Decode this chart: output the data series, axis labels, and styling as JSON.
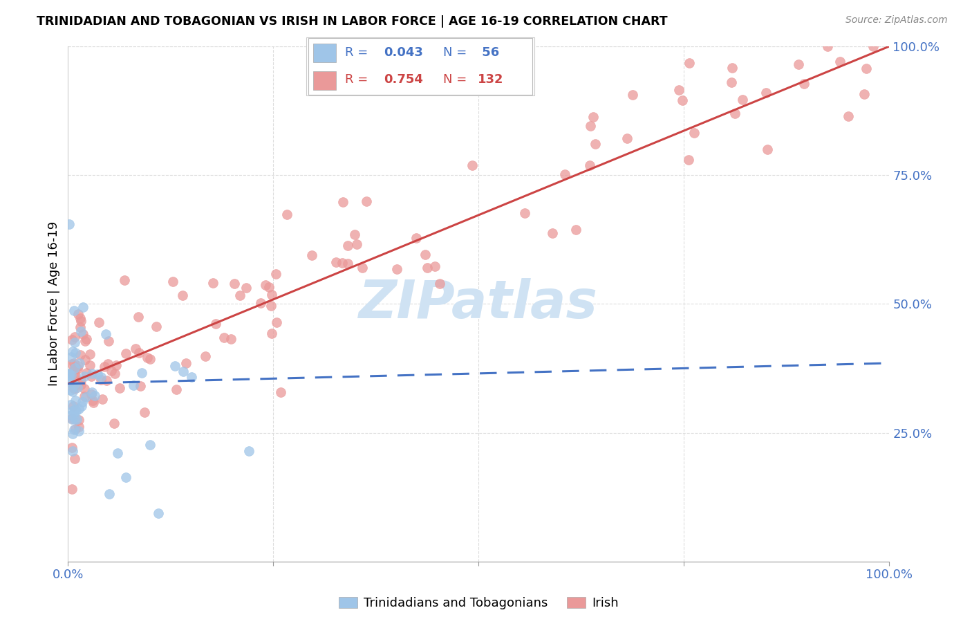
{
  "title": "TRINIDADIAN AND TOBAGONIAN VS IRISH IN LABOR FORCE | AGE 16-19 CORRELATION CHART",
  "source": "Source: ZipAtlas.com",
  "ylabel": "In Labor Force | Age 16-19",
  "color_blue": "#9fc5e8",
  "color_pink": "#ea9999",
  "color_blue_line": "#4472c4",
  "color_pink_line": "#cc4444",
  "color_blue_text": "#4472c4",
  "color_pink_text": "#cc4444",
  "color_grid": "#cccccc",
  "color_watermark": "#cfe2f3",
  "legend_label_blue": "Trinidadians and Tobagonians",
  "legend_label_pink": "Irish"
}
